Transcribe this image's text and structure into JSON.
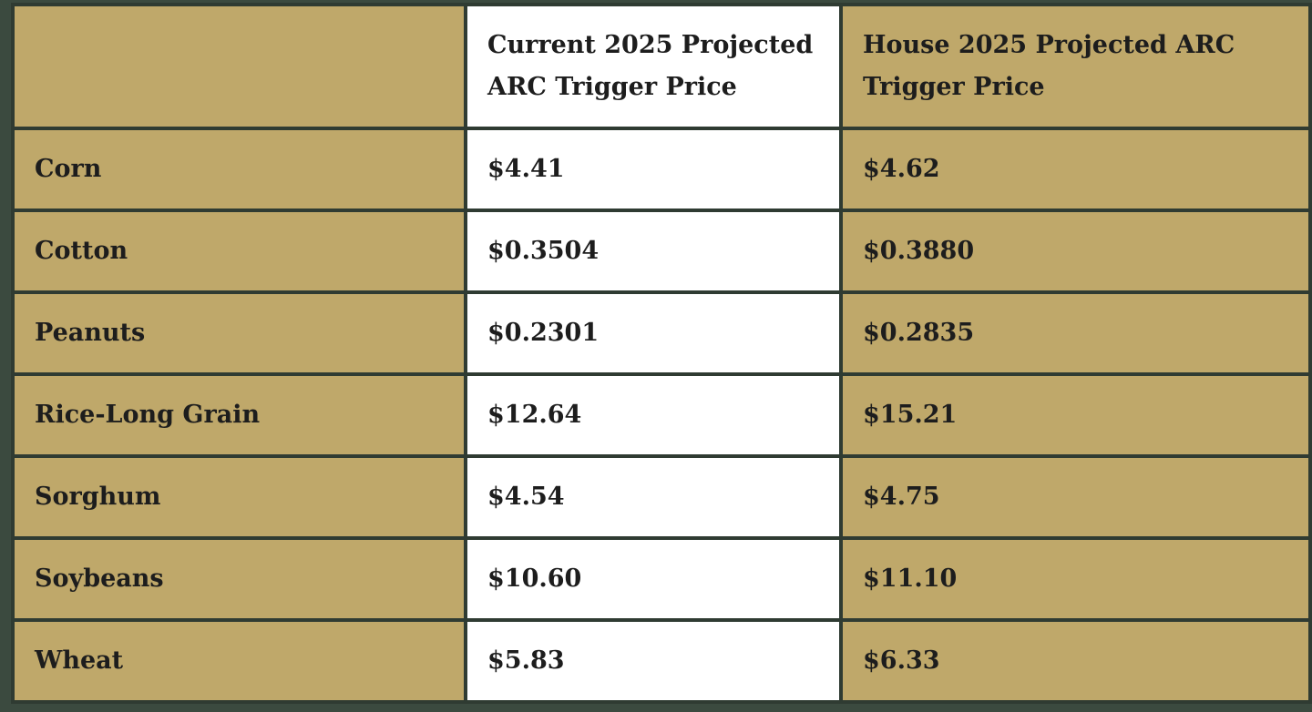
{
  "table": {
    "headers": [
      "",
      "Current 2025 Projected ARC Trigger Price",
      "House 2025 Projected ARC Trigger Price"
    ],
    "header_lines": {
      "current": [
        "Current 2025 Projected",
        "ARC Trigger Price"
      ],
      "house": [
        "House 2025 Projected ARC",
        "Trigger Price"
      ]
    },
    "rows": [
      {
        "crop": "Corn",
        "current": "$4.41",
        "house": "$4.62"
      },
      {
        "crop": "Cotton",
        "current": "$0.3504",
        "house": "$0.3880"
      },
      {
        "crop": "Peanuts",
        "current": "$0.2301",
        "house": "$0.2835"
      },
      {
        "crop": "Rice-Long Grain",
        "current": "$12.64",
        "house": "$15.21"
      },
      {
        "crop": "Sorghum",
        "current": "$4.54",
        "house": "$4.75"
      },
      {
        "crop": "Soybeans",
        "current": "$10.60",
        "house": "$11.10"
      },
      {
        "crop": "Wheat",
        "current": "$5.83",
        "house": "$6.33"
      }
    ]
  },
  "colors": {
    "background": "#3b4a3f",
    "gold_cell": "#bfa86a",
    "white_cell": "#ffffff",
    "border": "#2f3b32",
    "text": "#1d1d1d"
  }
}
